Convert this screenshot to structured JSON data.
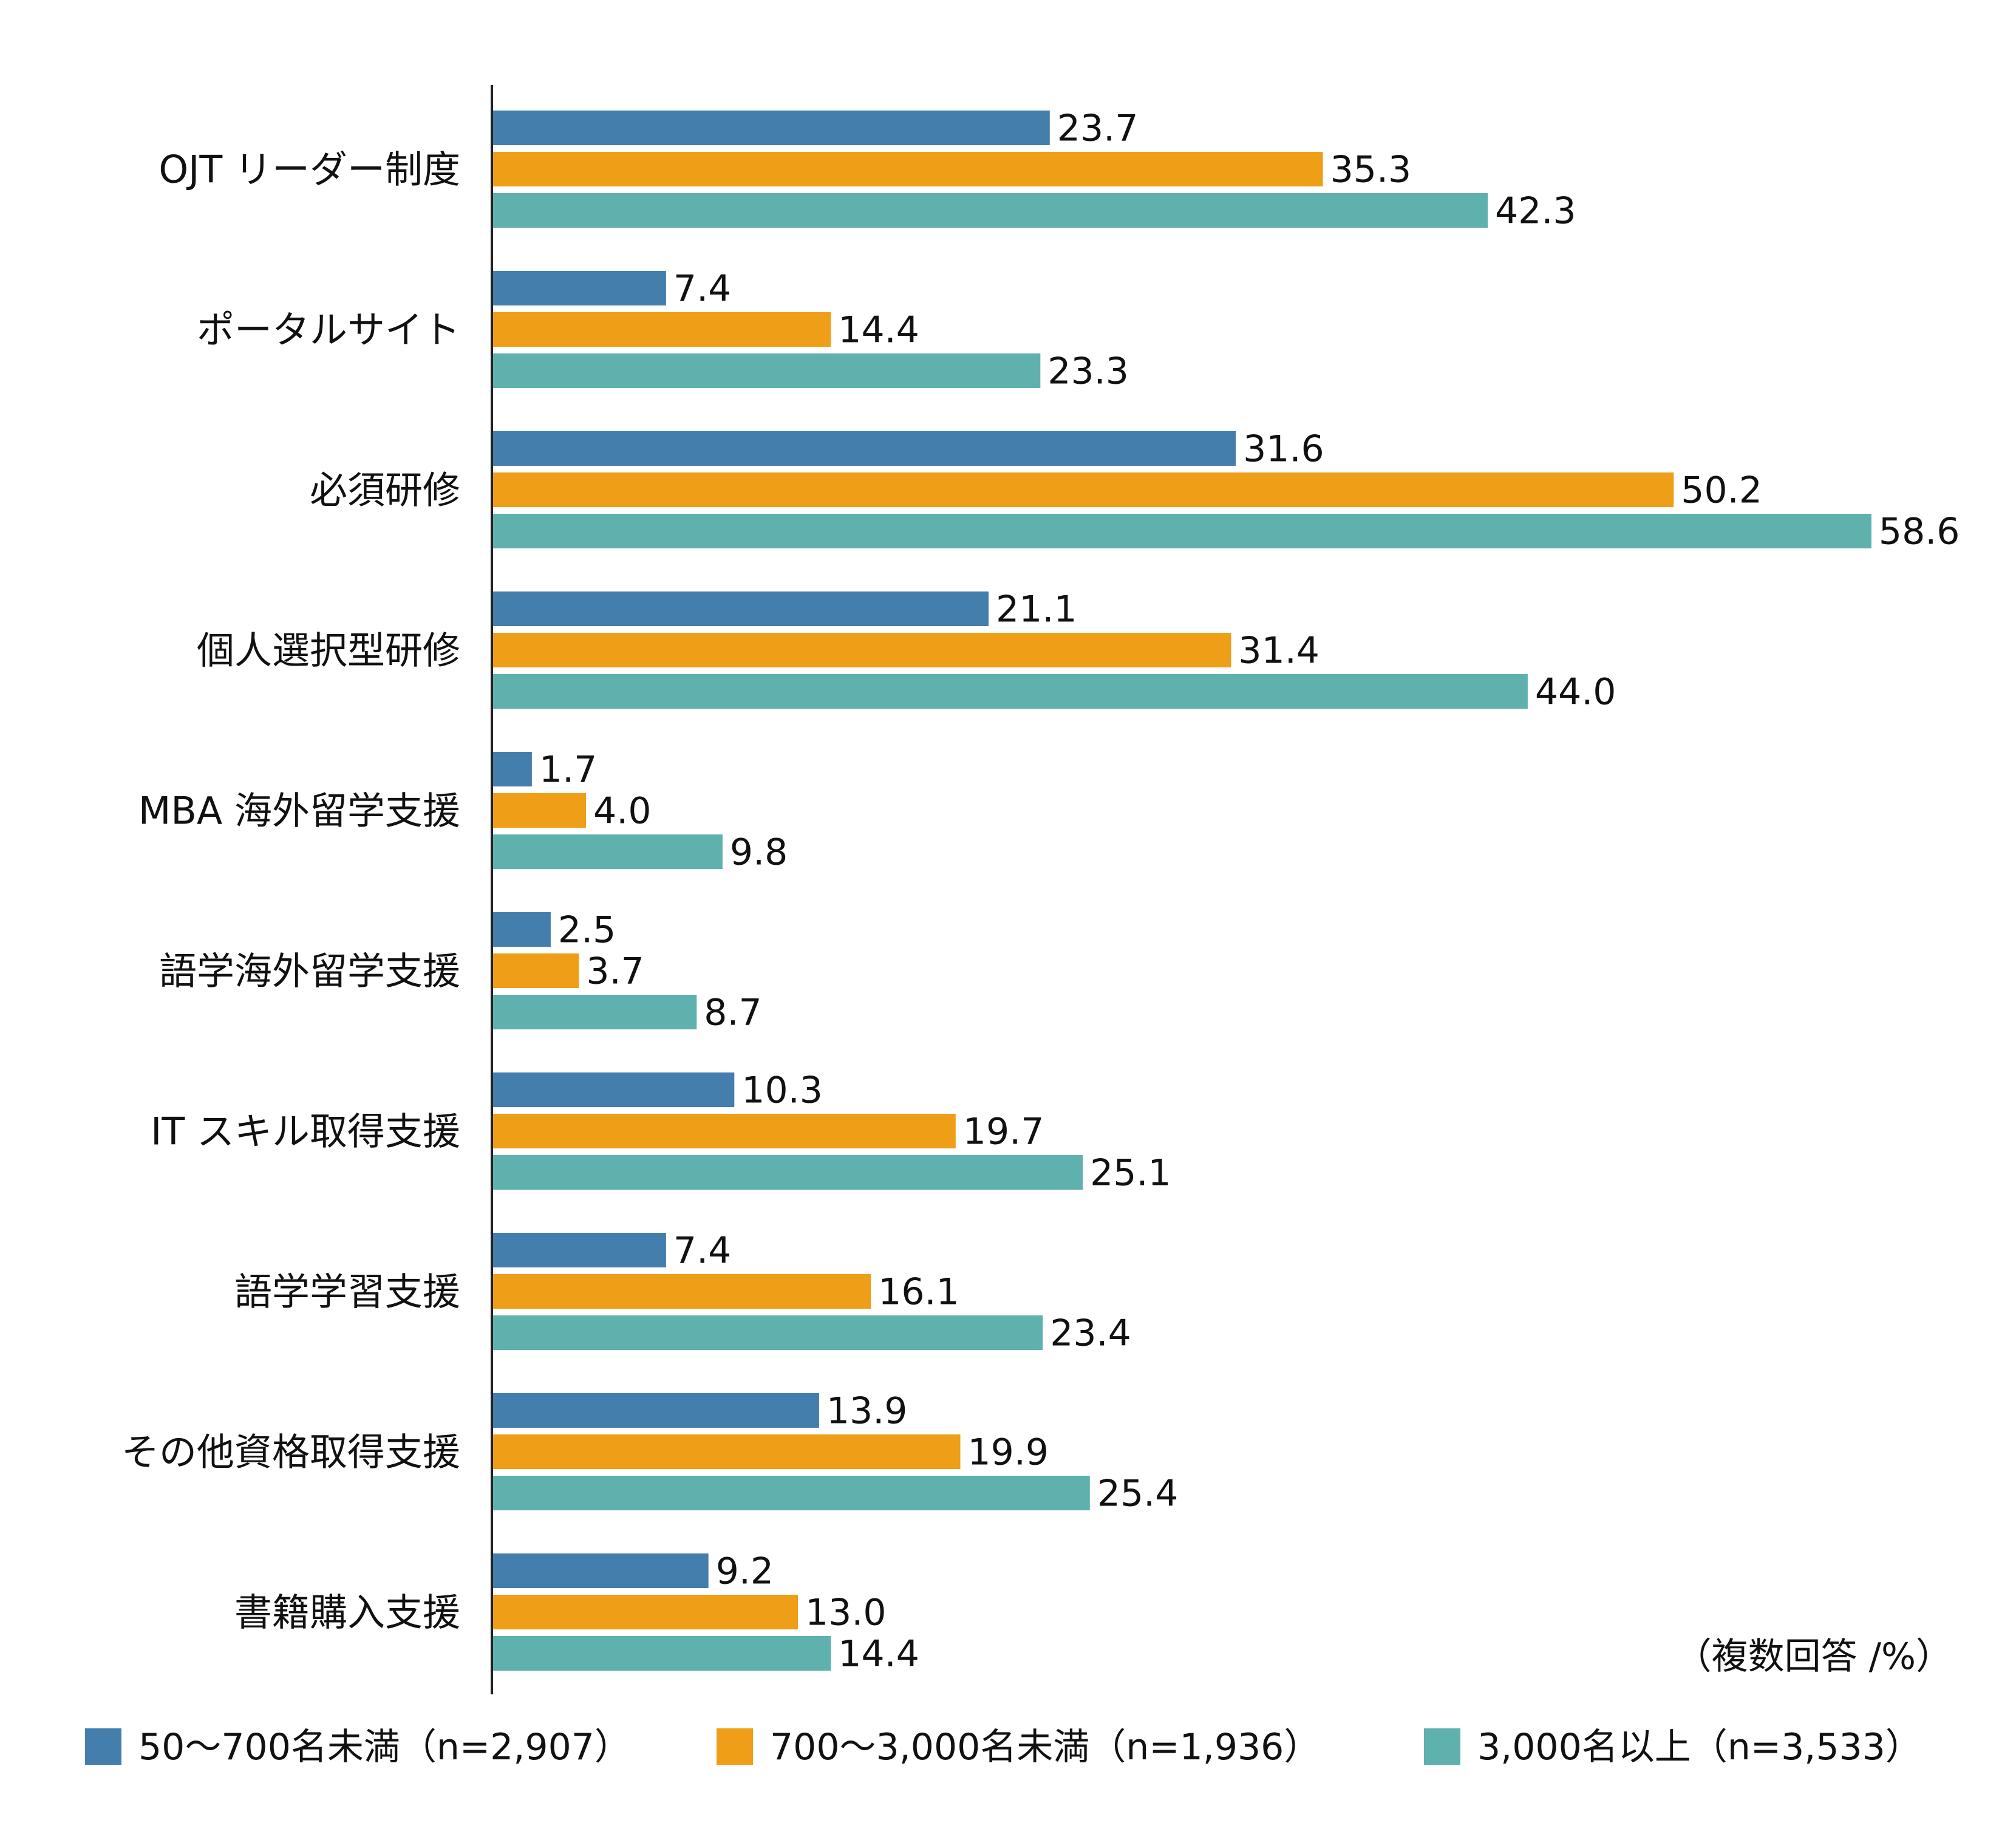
{
  "chart_data": {
    "type": "bar",
    "orientation": "horizontal",
    "categories": [
      "OJT リーダー制度",
      "ポータルサイト",
      "必須研修",
      "個人選択型研修",
      "MBA 海外留学支援",
      "語学海外留学支援",
      "IT スキル取得支援",
      "語学学習支援",
      "その他資格取得支援",
      "書籍購入支援"
    ],
    "series": [
      {
        "name": "50～700名未満（n=2,907）",
        "color": "#437ead",
        "values": [
          23.7,
          7.4,
          31.6,
          21.1,
          1.7,
          2.5,
          10.3,
          7.4,
          13.9,
          9.2
        ],
        "labels": [
          "23.7",
          "7.4",
          "31.6",
          "21.1",
          "1.7",
          "2.5",
          "10.3",
          "7.4",
          "13.9",
          "9.2"
        ]
      },
      {
        "name": "700～3,000名未満（n=1,936）",
        "color": "#ee9e17",
        "values": [
          35.3,
          14.4,
          50.2,
          31.4,
          4.0,
          3.7,
          19.7,
          16.1,
          19.9,
          13.0
        ],
        "labels": [
          "35.3",
          "14.4",
          "50.2",
          "31.4",
          "4.0",
          "3.7",
          "19.7",
          "16.1",
          "19.9",
          "13.0"
        ]
      },
      {
        "name": "3,000名以上（n=3,533）",
        "color": "#5fb1ae",
        "values": [
          42.3,
          23.3,
          58.6,
          44.0,
          9.8,
          8.7,
          25.1,
          23.4,
          25.4,
          14.4
        ],
        "labels": [
          "42.3",
          "23.3",
          "58.6",
          "44.0",
          "9.8",
          "8.7",
          "25.1",
          "23.4",
          "25.4",
          "14.4"
        ]
      }
    ],
    "xlim": [
      0,
      60
    ],
    "grid": false,
    "legend_position": "bottom",
    "note": "（複数回答 /%）"
  }
}
